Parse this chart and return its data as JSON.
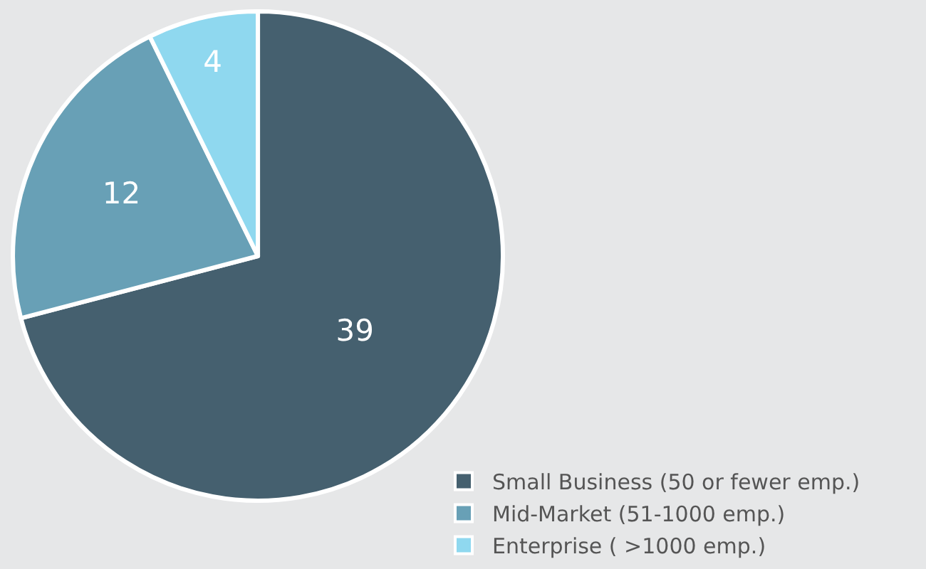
{
  "chart_data": {
    "type": "pie",
    "categories": [
      "Small Business (50 or fewer emp.)",
      "Mid-Market (51-1000 emp.)",
      "Enterprise ( >1000 emp.)"
    ],
    "values": [
      39,
      12,
      4
    ],
    "colors": [
      "#45606f",
      "#68a0b6",
      "#8fd8ef"
    ],
    "data_labels": true,
    "legend": "bottom right"
  }
}
